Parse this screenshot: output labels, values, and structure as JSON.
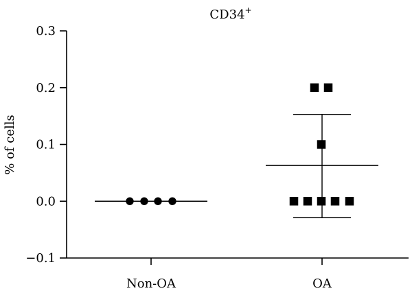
{
  "chart_data": {
    "type": "scatter",
    "title": "CD34",
    "title_superscript": "+",
    "xlabel": "",
    "ylabel": "% of cells",
    "ylim": [
      -0.1,
      0.3
    ],
    "yticks": [
      {
        "value": -0.1,
        "label": "−0.1"
      },
      {
        "value": 0.0,
        "label": "0.0"
      },
      {
        "value": 0.1,
        "label": "0.1"
      },
      {
        "value": 0.2,
        "label": "0.2"
      },
      {
        "value": 0.3,
        "label": "0.3"
      }
    ],
    "categories": [
      "Non-OA",
      "OA"
    ],
    "grid": false,
    "series": [
      {
        "category": "Non-OA",
        "marker": "circle",
        "values": [
          0.0,
          0.0,
          0.0,
          0.0
        ],
        "mean": 0.0,
        "sd_upper": 0.0,
        "sd_lower": 0.0
      },
      {
        "category": "OA",
        "marker": "square",
        "values": [
          0.2,
          0.2,
          0.1,
          0.0,
          0.0,
          0.0,
          0.0,
          0.0
        ],
        "mean": 0.063,
        "sd_upper": 0.153,
        "sd_lower": -0.029
      }
    ],
    "colors": {
      "axis": "#000000",
      "marker": "#000000"
    }
  }
}
